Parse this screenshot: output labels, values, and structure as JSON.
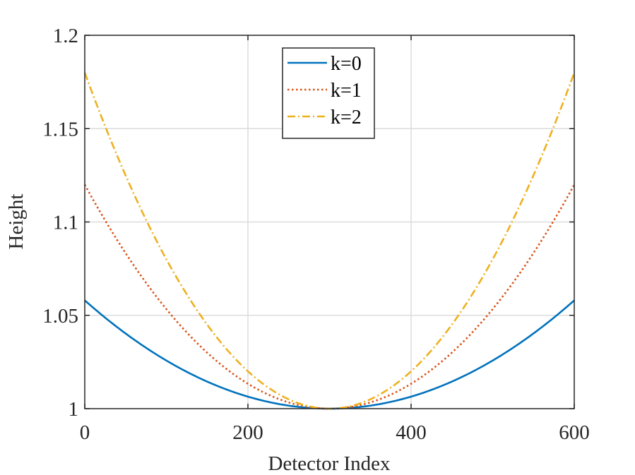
{
  "chart_data": {
    "type": "line",
    "title": "",
    "xlabel": "Detector Index",
    "ylabel": "Height",
    "xlim": [
      0,
      600
    ],
    "ylim": [
      1,
      1.2
    ],
    "xticks": [
      0,
      200,
      400,
      600
    ],
    "xtick_labels": [
      "0",
      "200",
      "400",
      "600"
    ],
    "yticks": [
      1,
      1.05,
      1.1,
      1.15,
      1.2
    ],
    "ytick_labels": [
      "1",
      "1.05",
      "1.1",
      "1.15",
      "1.2"
    ],
    "grid": true,
    "legend_position": "top-center",
    "x": [
      0,
      50,
      100,
      150,
      200,
      250,
      300,
      350,
      400,
      450,
      500,
      550,
      600
    ],
    "series": [
      {
        "name": "k=0",
        "color": "#0072BD",
        "style": "solid",
        "values": [
          1.058,
          1.0403,
          1.0258,
          1.0145,
          1.0064,
          1.0016,
          1.0,
          1.0016,
          1.0064,
          1.0145,
          1.0258,
          1.0403,
          1.058
        ]
      },
      {
        "name": "k=1",
        "color": "#D95319",
        "style": "dotted",
        "values": [
          1.12,
          1.0833,
          1.0533,
          1.03,
          1.0133,
          1.0033,
          1.0,
          1.0033,
          1.0133,
          1.03,
          1.0533,
          1.0833,
          1.12
        ]
      },
      {
        "name": "k=2",
        "color": "#EDB120",
        "style": "dashdot",
        "values": [
          1.18,
          1.125,
          1.08,
          1.045,
          1.02,
          1.005,
          1.0,
          1.005,
          1.02,
          1.045,
          1.08,
          1.125,
          1.18
        ]
      }
    ]
  }
}
